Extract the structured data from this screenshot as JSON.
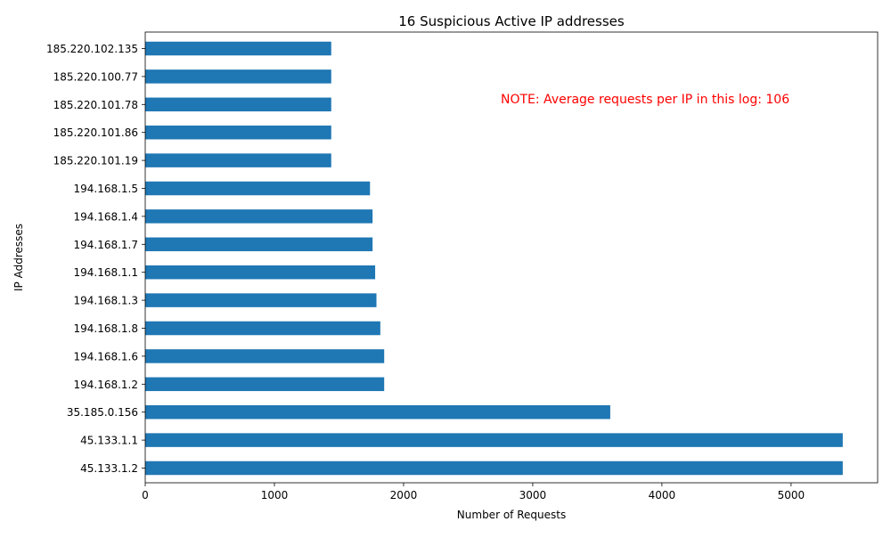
{
  "chart_data": {
    "type": "bar",
    "orientation": "horizontal",
    "title": "16 Suspicious Active IP addresses",
    "xlabel": "Number of Requests",
    "ylabel": "IP Addresses",
    "xlim": [
      0,
      5670
    ],
    "xticks": [
      0,
      1000,
      2000,
      3000,
      4000,
      5000
    ],
    "grid": false,
    "bar_color": "#1f77b4",
    "annotation": {
      "text": "NOTE: Average requests per IP in this log: 106",
      "color": "#ff0000"
    },
    "categories": [
      "45.133.1.2",
      "45.133.1.1",
      "35.185.0.156",
      "194.168.1.2",
      "194.168.1.6",
      "194.168.1.8",
      "194.168.1.3",
      "194.168.1.1",
      "194.168.1.7",
      "194.168.1.4",
      "194.168.1.5",
      "185.220.101.19",
      "185.220.101.86",
      "185.220.101.78",
      "185.220.100.77",
      "185.220.102.135"
    ],
    "values": [
      5400,
      5400,
      3600,
      1850,
      1850,
      1820,
      1790,
      1780,
      1760,
      1760,
      1740,
      1440,
      1440,
      1440,
      1440,
      1440
    ]
  }
}
